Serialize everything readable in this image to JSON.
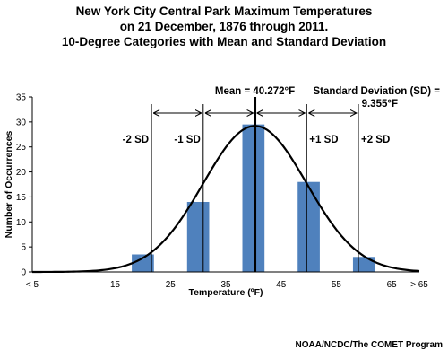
{
  "title_lines": [
    "New York City Central Park Maximum Temperatures",
    "on 21 December, 1876 through 2011.",
    "10-Degree Categories with Mean and Standard Deviation"
  ],
  "credit": "NOAA/NCDC/The COMET Program",
  "colors": {
    "bar": "#4f81bd",
    "curve": "#000000",
    "axis": "#000000"
  },
  "chart_data": {
    "type": "bar",
    "xlabel": "Temperature (ºF)",
    "ylabel": "Number of Occurrences",
    "xlim": [
      0,
      70
    ],
    "ylim": [
      0,
      35
    ],
    "yticks": [
      0,
      5,
      10,
      15,
      20,
      25,
      30,
      35
    ],
    "xticks": [
      {
        "label": "< 5",
        "value": 0
      },
      {
        "label": "15",
        "value": 15
      },
      {
        "label": "25",
        "value": 25
      },
      {
        "label": "35",
        "value": 35
      },
      {
        "label": "45",
        "value": 45
      },
      {
        "label": "55",
        "value": 55
      },
      {
        "label": "65",
        "value": 65
      },
      {
        "label": "> 65",
        "value": 70
      }
    ],
    "bars": [
      {
        "center": 20,
        "value": 3.5
      },
      {
        "center": 30,
        "value": 14
      },
      {
        "center": 40,
        "value": 29.5
      },
      {
        "center": 50,
        "value": 18
      },
      {
        "center": 60,
        "value": 3
      }
    ],
    "bar_width": 4,
    "mean": 40.272,
    "sd": 9.355,
    "mean_label": "Mean = 40.272°F",
    "sd_label_lines": [
      "Standard Deviation (SD) =",
      "9.355°F"
    ],
    "sd_lines": [
      {
        "label": "-2 SD",
        "value": 21.562
      },
      {
        "label": "-1 SD",
        "value": 30.917
      },
      {
        "label": "+1 SD",
        "value": 49.627
      },
      {
        "label": "+2 SD",
        "value": 58.982
      }
    ],
    "curve_peak": 29.2,
    "grid": false
  }
}
